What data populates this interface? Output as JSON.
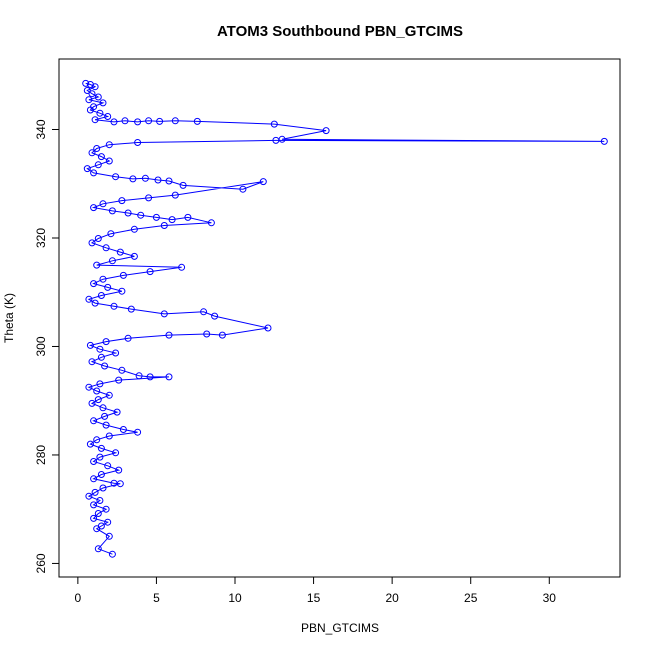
{
  "chart_data": {
    "type": "line",
    "title": "ATOM3 Southbound PBN_GTCIMS",
    "xlabel": "PBN_GTCIMS",
    "ylabel": "Theta (K)",
    "xlim": [
      -1.2,
      34.5
    ],
    "ylim": [
      257.5,
      353.0
    ],
    "xticks": [
      0,
      5,
      10,
      15,
      20,
      25,
      30
    ],
    "yticks": [
      260,
      280,
      300,
      320,
      340
    ],
    "grid": false,
    "series_color": "#0000ff",
    "marker": "open-circle",
    "series": [
      {
        "points": [
          [
            0.5,
            348.5
          ],
          [
            0.8,
            348.3
          ],
          [
            1.1,
            347.9
          ],
          [
            0.6,
            347.2
          ],
          [
            0.9,
            346.6
          ],
          [
            1.3,
            346.0
          ],
          [
            0.7,
            345.5
          ],
          [
            1.6,
            344.9
          ],
          [
            1.0,
            344.2
          ],
          [
            0.8,
            343.6
          ],
          [
            1.4,
            343.0
          ],
          [
            1.9,
            342.4
          ],
          [
            1.1,
            341.8
          ],
          [
            2.3,
            341.4
          ],
          [
            3.0,
            341.6
          ],
          [
            3.8,
            341.4
          ],
          [
            4.5,
            341.6
          ],
          [
            5.2,
            341.5
          ],
          [
            6.2,
            341.6
          ],
          [
            7.6,
            341.5
          ],
          [
            12.5,
            341.0
          ],
          [
            15.8,
            339.8
          ],
          [
            13.0,
            338.2
          ],
          [
            33.5,
            337.8
          ],
          [
            12.6,
            338.0
          ],
          [
            3.8,
            337.6
          ],
          [
            2.0,
            337.2
          ],
          [
            1.2,
            336.5
          ],
          [
            0.9,
            335.7
          ],
          [
            1.5,
            335.0
          ],
          [
            2.0,
            334.2
          ],
          [
            1.3,
            333.5
          ],
          [
            0.6,
            332.8
          ],
          [
            1.0,
            332.0
          ],
          [
            2.4,
            331.3
          ],
          [
            3.5,
            330.9
          ],
          [
            4.3,
            331.0
          ],
          [
            5.1,
            330.7
          ],
          [
            5.8,
            330.5
          ],
          [
            6.7,
            329.7
          ],
          [
            10.5,
            329.0
          ],
          [
            11.8,
            330.4
          ],
          [
            6.2,
            327.9
          ],
          [
            4.5,
            327.4
          ],
          [
            2.8,
            326.9
          ],
          [
            1.6,
            326.3
          ],
          [
            1.0,
            325.6
          ],
          [
            2.2,
            325.0
          ],
          [
            3.2,
            324.6
          ],
          [
            4.0,
            324.2
          ],
          [
            5.0,
            323.8
          ],
          [
            6.0,
            323.4
          ],
          [
            7.0,
            323.8
          ],
          [
            8.5,
            322.8
          ],
          [
            5.5,
            322.3
          ],
          [
            3.6,
            321.6
          ],
          [
            2.1,
            320.8
          ],
          [
            1.3,
            319.9
          ],
          [
            0.9,
            319.1
          ],
          [
            1.8,
            318.2
          ],
          [
            2.7,
            317.4
          ],
          [
            3.6,
            316.6
          ],
          [
            2.2,
            315.8
          ],
          [
            1.2,
            315.0
          ],
          [
            6.6,
            314.6
          ],
          [
            4.6,
            313.8
          ],
          [
            2.9,
            313.1
          ],
          [
            1.6,
            312.4
          ],
          [
            1.0,
            311.6
          ],
          [
            1.9,
            310.9
          ],
          [
            2.8,
            310.2
          ],
          [
            1.5,
            309.4
          ],
          [
            0.7,
            308.7
          ],
          [
            1.1,
            308.0
          ],
          [
            2.3,
            307.4
          ],
          [
            3.4,
            306.9
          ],
          [
            5.5,
            306.0
          ],
          [
            8.0,
            306.4
          ],
          [
            8.7,
            305.6
          ],
          [
            12.1,
            303.4
          ],
          [
            9.2,
            302.1
          ],
          [
            8.2,
            302.3
          ],
          [
            5.8,
            302.1
          ],
          [
            3.2,
            301.5
          ],
          [
            1.8,
            300.9
          ],
          [
            0.8,
            300.2
          ],
          [
            1.4,
            299.5
          ],
          [
            2.4,
            298.8
          ],
          [
            1.5,
            298.0
          ],
          [
            0.9,
            297.2
          ],
          [
            1.7,
            296.4
          ],
          [
            2.8,
            295.6
          ],
          [
            3.9,
            294.6
          ],
          [
            4.6,
            294.4
          ],
          [
            5.8,
            294.4
          ],
          [
            2.6,
            293.8
          ],
          [
            1.4,
            293.1
          ],
          [
            0.7,
            292.5
          ],
          [
            1.2,
            291.8
          ],
          [
            2.0,
            291.0
          ],
          [
            1.3,
            290.2
          ],
          [
            0.9,
            289.5
          ],
          [
            1.6,
            288.7
          ],
          [
            2.5,
            287.9
          ],
          [
            1.7,
            287.1
          ],
          [
            1.0,
            286.3
          ],
          [
            1.8,
            285.5
          ],
          [
            2.9,
            284.7
          ],
          [
            3.8,
            284.2
          ],
          [
            2.0,
            283.5
          ],
          [
            1.2,
            282.8
          ],
          [
            0.8,
            282.0
          ],
          [
            1.5,
            281.2
          ],
          [
            2.4,
            280.4
          ],
          [
            1.4,
            279.6
          ],
          [
            1.0,
            278.8
          ],
          [
            1.9,
            278.0
          ],
          [
            2.6,
            277.2
          ],
          [
            1.5,
            276.4
          ],
          [
            1.0,
            275.6
          ],
          [
            2.3,
            274.8
          ],
          [
            2.7,
            274.7
          ],
          [
            1.6,
            273.9
          ],
          [
            1.1,
            273.1
          ],
          [
            0.7,
            272.4
          ],
          [
            1.4,
            271.6
          ],
          [
            1.0,
            270.8
          ],
          [
            1.8,
            270.0
          ],
          [
            1.3,
            269.2
          ],
          [
            1.0,
            268.3
          ],
          [
            1.9,
            267.6
          ],
          [
            1.5,
            266.9
          ],
          [
            1.2,
            266.4
          ],
          [
            2.0,
            265.0
          ],
          [
            1.3,
            262.7
          ],
          [
            2.2,
            261.7
          ]
        ]
      }
    ]
  }
}
